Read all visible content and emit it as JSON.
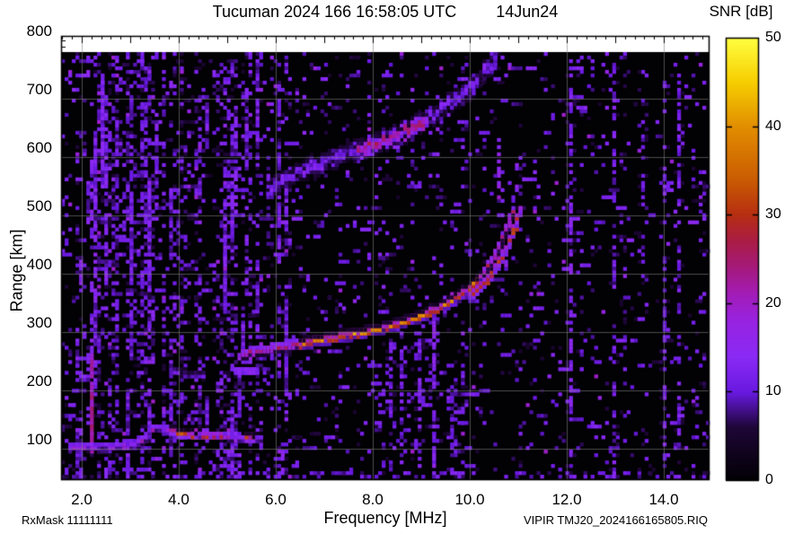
{
  "header": {
    "title_main": "Tucuman 2024 166 16:58:05 UTC",
    "title_date": "14Jun24"
  },
  "colorbar": {
    "label": "SNR [dB]",
    "tick_labels": [
      "0",
      "10",
      "20",
      "30",
      "40",
      "50"
    ],
    "tick_values": [
      0,
      10,
      20,
      30,
      40,
      50
    ]
  },
  "axes": {
    "x_label": "Frequency [MHz]",
    "y_label": "Range [km]",
    "x_tick_labels": [
      "2.0",
      "4.0",
      "6.0",
      "8.0",
      "10.0",
      "12.0",
      "14.0"
    ],
    "x_tick_values": [
      2,
      4,
      6,
      8,
      10,
      12,
      14
    ],
    "y_tick_labels": [
      "100",
      "200",
      "300",
      "400",
      "500",
      "600",
      "700",
      "800"
    ],
    "y_tick_values": [
      100,
      200,
      300,
      400,
      500,
      600,
      700,
      800
    ]
  },
  "footer": {
    "rx_mask": "RxMask 11111111",
    "file_id": "VIPIR  TMJ20_2024166165805.RIQ"
  },
  "chart_data": {
    "type": "heatmap",
    "title": "Tucuman 2024 166 16:58:05 UTC  14Jun24",
    "xlabel": "Frequency [MHz]",
    "ylabel": "Range [km]",
    "colorbar_label": "SNR [dB]",
    "x_range_mhz": [
      1.6,
      14.9
    ],
    "y_range_km": [
      46,
      795
    ],
    "snr_range_db": [
      0,
      50
    ],
    "x_ticks": [
      2,
      4,
      6,
      8,
      10,
      12,
      14
    ],
    "y_ticks": [
      100,
      200,
      300,
      400,
      500,
      600,
      700,
      800
    ],
    "grid": true,
    "palette": [
      [
        0,
        [
          2,
          0,
          4
        ]
      ],
      [
        6,
        [
          30,
          6,
          55
        ]
      ],
      [
        10,
        [
          105,
          25,
          225
        ]
      ],
      [
        14,
        [
          138,
          42,
          245
        ]
      ],
      [
        18,
        [
          152,
          35,
          225
        ]
      ],
      [
        21,
        [
          162,
          28,
          185
        ]
      ],
      [
        24,
        [
          165,
          26,
          125
        ]
      ],
      [
        27,
        [
          170,
          28,
          70
        ]
      ],
      [
        30,
        [
          182,
          46,
          18
        ]
      ],
      [
        34,
        [
          202,
          92,
          2
        ]
      ],
      [
        40,
        [
          226,
          142,
          0
        ]
      ],
      [
        45,
        [
          246,
          206,
          0
        ]
      ],
      [
        50,
        [
          255,
          255,
          64
        ]
      ]
    ],
    "traces": [
      {
        "name": "E-layer echo",
        "points": [
          [
            1.75,
            103
          ],
          [
            2.6,
            104
          ],
          [
            3.1,
            107
          ],
          [
            3.3,
            116
          ],
          [
            3.5,
            138
          ],
          [
            3.7,
            134
          ],
          [
            4.0,
            128
          ],
          [
            4.4,
            124
          ],
          [
            4.9,
            121
          ],
          [
            5.3,
            119
          ],
          [
            5.68,
            117
          ]
        ],
        "half_width_km": 5,
        "base_snr_db": 19,
        "fill_p": 0.92,
        "jitter_km": 3,
        "hotspots": [
          [
            3.85,
            4.45,
            33
          ],
          [
            4.5,
            4.95,
            29
          ],
          [
            5.38,
            5.62,
            35
          ]
        ]
      },
      {
        "name": "F-layer second hop",
        "points": [
          [
            5.85,
            542
          ],
          [
            6.3,
            566
          ],
          [
            6.8,
            586
          ],
          [
            7.2,
            598
          ],
          [
            7.6,
            610
          ],
          [
            8.0,
            622
          ],
          [
            8.4,
            634
          ],
          [
            8.8,
            650
          ],
          [
            9.2,
            670
          ],
          [
            9.6,
            692
          ],
          [
            9.9,
            712
          ],
          [
            10.15,
            733
          ],
          [
            10.4,
            755
          ],
          [
            10.55,
            766
          ]
        ],
        "half_width_km": 14,
        "base_snr_db": 13,
        "fill_p": 0.55,
        "jitter_km": 7,
        "hotspots": [
          [
            7.7,
            9.15,
            24
          ]
        ]
      },
      {
        "name": "detached echo 5.4 MHz",
        "points": [
          [
            5.12,
            234
          ],
          [
            5.6,
            232
          ]
        ],
        "half_width_km": 4,
        "base_snr_db": 17,
        "fill_p": 0.8,
        "jitter_km": 1,
        "hotspots": []
      },
      {
        "name": "diffuse echo 4.2 MHz",
        "points": [
          [
            3.95,
            230
          ],
          [
            4.5,
            227
          ]
        ],
        "half_width_km": 6,
        "base_snr_db": 11,
        "fill_p": 0.5,
        "jitter_km": 3,
        "hotspots": []
      },
      {
        "name": "F-layer O-mode",
        "points": [
          [
            5.28,
            262
          ],
          [
            5.6,
            267
          ],
          [
            6.0,
            273
          ],
          [
            6.5,
            280
          ],
          [
            7.0,
            287
          ],
          [
            7.5,
            295
          ],
          [
            8.0,
            303
          ],
          [
            8.5,
            314
          ],
          [
            9.0,
            328
          ],
          [
            9.4,
            342
          ],
          [
            9.7,
            356
          ],
          [
            10.0,
            374
          ],
          [
            10.2,
            390
          ],
          [
            10.4,
            412
          ],
          [
            10.55,
            436
          ],
          [
            10.7,
            462
          ],
          [
            10.8,
            487
          ],
          [
            10.88,
            508
          ]
        ],
        "half_width_km": 6,
        "base_snr_db": 26,
        "fill_p": 0.95,
        "jitter_km": 2,
        "hotspots": [
          [
            6.5,
            10.25,
            40
          ]
        ]
      },
      {
        "name": "F-layer X-mode",
        "points": [
          [
            10.02,
            362
          ],
          [
            10.3,
            384
          ],
          [
            10.5,
            404
          ],
          [
            10.68,
            428
          ],
          [
            10.82,
            455
          ],
          [
            10.94,
            480
          ],
          [
            11.02,
            505
          ],
          [
            11.06,
            515
          ]
        ],
        "half_width_km": 5,
        "base_snr_db": 30,
        "fill_p": 0.9,
        "jitter_km": 2,
        "hotspots": []
      }
    ],
    "interference_stripes": [
      {
        "mhz": 2.22,
        "km": [
          95,
          265
        ],
        "p": 0.95,
        "snr_db": [
          18,
          26
        ]
      },
      {
        "mhz": 2.22,
        "km": [
          265,
          520
        ],
        "p": 0.4,
        "snr_db": [
          10,
          16
        ]
      },
      {
        "mhz": 3.05,
        "km": [
          250,
          720
        ],
        "p": 0.5,
        "snr_db": [
          8,
          14
        ]
      },
      {
        "mhz": 3.3,
        "km": [
          350,
          760
        ],
        "p": 0.45,
        "snr_db": [
          8,
          13
        ]
      },
      {
        "mhz": 6.05,
        "km": [
          420,
          730
        ],
        "p": 0.5,
        "snr_db": [
          9,
          15
        ]
      },
      {
        "mhz": 8.35,
        "km": [
          60,
          280
        ],
        "p": 0.45,
        "snr_db": [
          8,
          14
        ]
      },
      {
        "mhz": 8.62,
        "km": [
          60,
          300
        ],
        "p": 0.4,
        "snr_db": [
          8,
          14
        ]
      },
      {
        "mhz": 9.0,
        "km": [
          60,
          300
        ],
        "p": 0.5,
        "snr_db": [
          9,
          15
        ]
      },
      {
        "mhz": 9.26,
        "km": [
          60,
          330
        ],
        "p": 0.7,
        "snr_db": [
          10,
          17
        ]
      },
      {
        "mhz": 9.6,
        "km": [
          60,
          260
        ],
        "p": 0.4,
        "snr_db": [
          8,
          13
        ]
      },
      {
        "mhz": 10.62,
        "km": [
          530,
          645
        ],
        "p": 0.6,
        "snr_db": [
          13,
          20
        ]
      },
      {
        "mhz": 10.95,
        "km": [
          520,
          600
        ],
        "p": 0.4,
        "snr_db": [
          12,
          18
        ]
      },
      {
        "mhz": 12.1,
        "km": [
          60,
          765
        ],
        "p": 0.45,
        "snr_db": [
          9,
          16
        ]
      },
      {
        "mhz": 12.95,
        "km": [
          60,
          765
        ],
        "p": 0.4,
        "snr_db": [
          8,
          15
        ]
      },
      {
        "mhz": 13.55,
        "km": [
          380,
          760
        ],
        "p": 0.3,
        "snr_db": [
          8,
          13
        ]
      },
      {
        "mhz": 14.0,
        "km": [
          60,
          760
        ],
        "p": 0.38,
        "snr_db": [
          8,
          15
        ]
      },
      {
        "mhz": 14.35,
        "km": [
          100,
          745
        ],
        "p": 0.35,
        "snr_db": [
          8,
          14
        ]
      }
    ],
    "noise": {
      "low_band_max_mhz": 6.25,
      "regions": [
        {
          "mhz": [
            8.0,
            10.0
          ],
          "km": [
            85,
            290
          ],
          "p": 0.1,
          "snr_db": [
            6,
            13
          ]
        },
        {
          "mhz": [
            1.6,
            14.9
          ],
          "km": [
            46,
            64
          ],
          "p": 0.22,
          "snr_db": [
            6,
            14
          ]
        },
        {
          "mhz": [
            2.6,
            3.6
          ],
          "km": [
            250,
            780
          ],
          "p": 0.12,
          "snr_db": [
            7,
            13
          ]
        }
      ],
      "h_dash_count": 330
    }
  }
}
